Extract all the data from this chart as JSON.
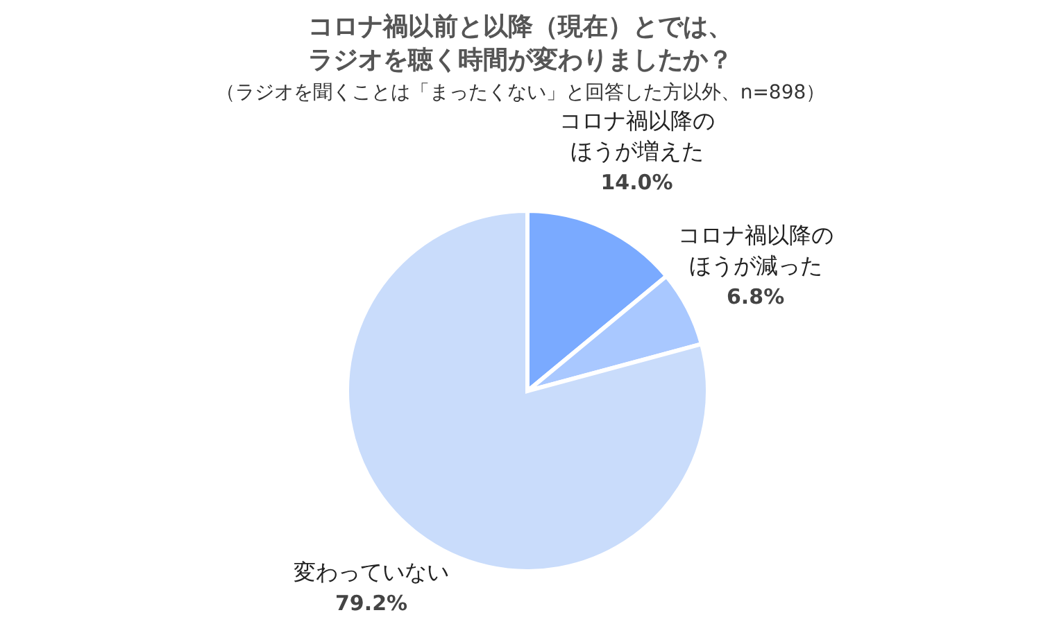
{
  "chart_data": {
    "type": "pie",
    "title": "コロナ禍以前と以降（現在）とでは、ラジオを聴く時間が変わりましたか？",
    "subtitle": "（ラジオを聞くことは「まったくない」と回答した方以外、n=898）",
    "categories": [
      "コロナ禍以降のほうが増えた",
      "コロナ禍以降のほうが減った",
      "変わっていない"
    ],
    "values": [
      14.0,
      6.8,
      79.2
    ],
    "colors": [
      "#7aaaff",
      "#a9c8ff",
      "#c9dcfb"
    ],
    "value_labels": [
      "14.0%",
      "6.8%",
      "79.2%"
    ],
    "legend": false
  }
}
